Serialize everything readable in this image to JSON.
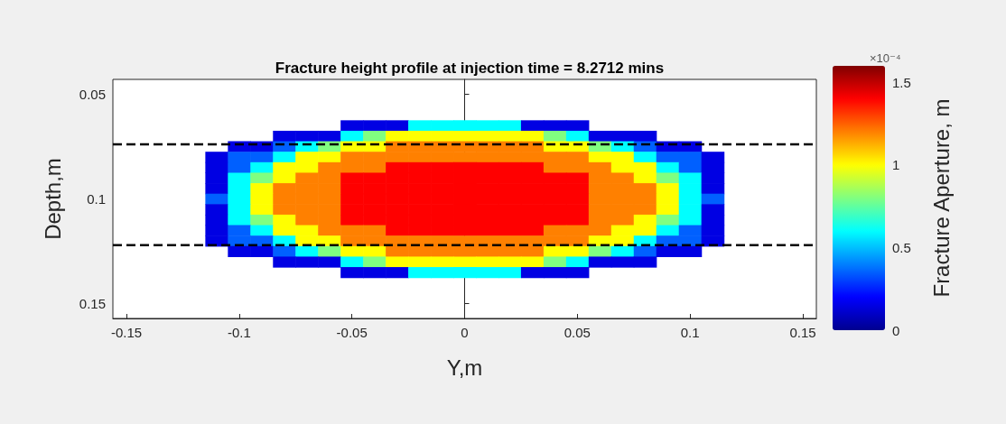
{
  "chart_data": {
    "type": "heatmap",
    "title": "Fracture height profile at injection time = 8.2712 mins",
    "xlabel": "Y,m",
    "ylabel": "Depth,m",
    "clabel": "Fracture Aperture, m",
    "annotations": [
      "×10⁻⁴"
    ],
    "x": [
      -0.11,
      -0.1,
      -0.09,
      -0.08,
      -0.07,
      -0.06,
      -0.05,
      -0.04,
      -0.03,
      -0.02,
      -0.01,
      0,
      0.01,
      0.02,
      0.03,
      0.04,
      0.05,
      0.06,
      0.07,
      0.08,
      0.09,
      0.1,
      0.11
    ],
    "y": [
      0.065,
      0.07,
      0.075,
      0.08,
      0.085,
      0.09,
      0.095,
      0.1,
      0.105,
      0.11,
      0.115,
      0.12,
      0.125,
      0.13,
      0.135
    ],
    "cells": [
      [
        null,
        null,
        null,
        null,
        null,
        null,
        0.15,
        0.15,
        0.15,
        0.6,
        0.6,
        0.6,
        0.6,
        0.6,
        0.15,
        0.15,
        0.15,
        null,
        null,
        null,
        null,
        null,
        null
      ],
      [
        null,
        null,
        null,
        0.15,
        0.15,
        0.15,
        0.6,
        0.8,
        1.0,
        1.0,
        1.0,
        1.0,
        1.0,
        1.0,
        1.0,
        0.8,
        0.6,
        0.15,
        0.15,
        0.15,
        null,
        null,
        null
      ],
      [
        null,
        0.15,
        0.15,
        0.35,
        0.6,
        0.8,
        1.0,
        1.0,
        1.2,
        1.2,
        1.2,
        1.2,
        1.2,
        1.2,
        1.2,
        1.0,
        1.0,
        0.8,
        0.6,
        0.35,
        0.15,
        0.15,
        null
      ],
      [
        0.15,
        0.35,
        0.35,
        0.6,
        1.0,
        1.0,
        1.2,
        1.2,
        1.2,
        1.2,
        1.2,
        1.2,
        1.2,
        1.2,
        1.2,
        1.2,
        1.2,
        1.0,
        1.0,
        0.6,
        0.35,
        0.35,
        0.15
      ],
      [
        0.15,
        0.35,
        0.6,
        1.0,
        1.0,
        1.2,
        1.2,
        1.2,
        1.4,
        1.4,
        1.4,
        1.4,
        1.4,
        1.4,
        1.4,
        1.2,
        1.2,
        1.2,
        1.0,
        1.0,
        0.6,
        0.35,
        0.15
      ],
      [
        0.15,
        0.6,
        0.8,
        1.0,
        1.2,
        1.2,
        1.4,
        1.4,
        1.4,
        1.4,
        1.4,
        1.4,
        1.4,
        1.4,
        1.4,
        1.4,
        1.4,
        1.2,
        1.2,
        1.0,
        0.8,
        0.6,
        0.15
      ],
      [
        0.15,
        0.6,
        1.0,
        1.2,
        1.2,
        1.2,
        1.4,
        1.4,
        1.4,
        1.4,
        1.4,
        1.4,
        1.4,
        1.4,
        1.4,
        1.4,
        1.4,
        1.2,
        1.2,
        1.2,
        1.0,
        0.6,
        0.15
      ],
      [
        0.35,
        0.6,
        1.0,
        1.2,
        1.2,
        1.2,
        1.4,
        1.4,
        1.4,
        1.4,
        1.4,
        1.4,
        1.4,
        1.4,
        1.4,
        1.4,
        1.4,
        1.2,
        1.2,
        1.2,
        1.0,
        0.6,
        0.35
      ],
      [
        0.15,
        0.6,
        1.0,
        1.2,
        1.2,
        1.2,
        1.4,
        1.4,
        1.4,
        1.4,
        1.4,
        1.4,
        1.4,
        1.4,
        1.4,
        1.4,
        1.4,
        1.2,
        1.2,
        1.2,
        1.0,
        0.6,
        0.15
      ],
      [
        0.15,
        0.6,
        0.8,
        1.0,
        1.2,
        1.2,
        1.4,
        1.4,
        1.4,
        1.4,
        1.4,
        1.4,
        1.4,
        1.4,
        1.4,
        1.4,
        1.4,
        1.2,
        1.2,
        1.0,
        0.8,
        0.6,
        0.15
      ],
      [
        0.15,
        0.35,
        0.6,
        1.0,
        1.0,
        1.2,
        1.2,
        1.2,
        1.4,
        1.4,
        1.4,
        1.4,
        1.4,
        1.4,
        1.4,
        1.2,
        1.2,
        1.2,
        1.0,
        1.0,
        0.6,
        0.35,
        0.15
      ],
      [
        0.15,
        0.35,
        0.35,
        0.6,
        1.0,
        1.0,
        1.2,
        1.2,
        1.2,
        1.2,
        1.2,
        1.2,
        1.2,
        1.2,
        1.2,
        1.2,
        1.2,
        1.0,
        1.0,
        0.6,
        0.35,
        0.35,
        0.15
      ],
      [
        null,
        0.15,
        0.15,
        0.35,
        0.6,
        0.8,
        1.0,
        1.0,
        1.2,
        1.2,
        1.2,
        1.2,
        1.2,
        1.2,
        1.2,
        1.0,
        1.0,
        0.8,
        0.6,
        0.35,
        0.15,
        0.15,
        null
      ],
      [
        null,
        null,
        null,
        0.15,
        0.15,
        0.15,
        0.6,
        0.8,
        1.0,
        1.0,
        1.0,
        1.0,
        1.0,
        1.0,
        1.0,
        0.8,
        0.6,
        0.15,
        0.15,
        0.15,
        null,
        null,
        null
      ],
      [
        null,
        null,
        null,
        null,
        null,
        null,
        0.15,
        0.15,
        0.15,
        0.6,
        0.6,
        0.6,
        0.6,
        0.6,
        0.15,
        0.15,
        0.15,
        null,
        null,
        null,
        null,
        null,
        null
      ]
    ],
    "clim": [
      0,
      1.6
    ],
    "cticks": [
      0,
      0.5,
      1,
      1.5
    ],
    "xlim": [
      -0.156,
      0.156
    ],
    "xticks": [
      -0.15,
      -0.1,
      -0.05,
      0,
      0.05,
      0.1,
      0.15
    ],
    "ylim": [
      0.157,
      0.043
    ],
    "yticks": [
      0.05,
      0.1,
      0.15
    ],
    "ref_lines": [
      {
        "axis": "y",
        "value": 0.074,
        "color": "#000000",
        "line_style": "dashed"
      },
      {
        "axis": "y",
        "value": 0.122,
        "color": "#000000",
        "line_style": "dashed"
      }
    ]
  }
}
